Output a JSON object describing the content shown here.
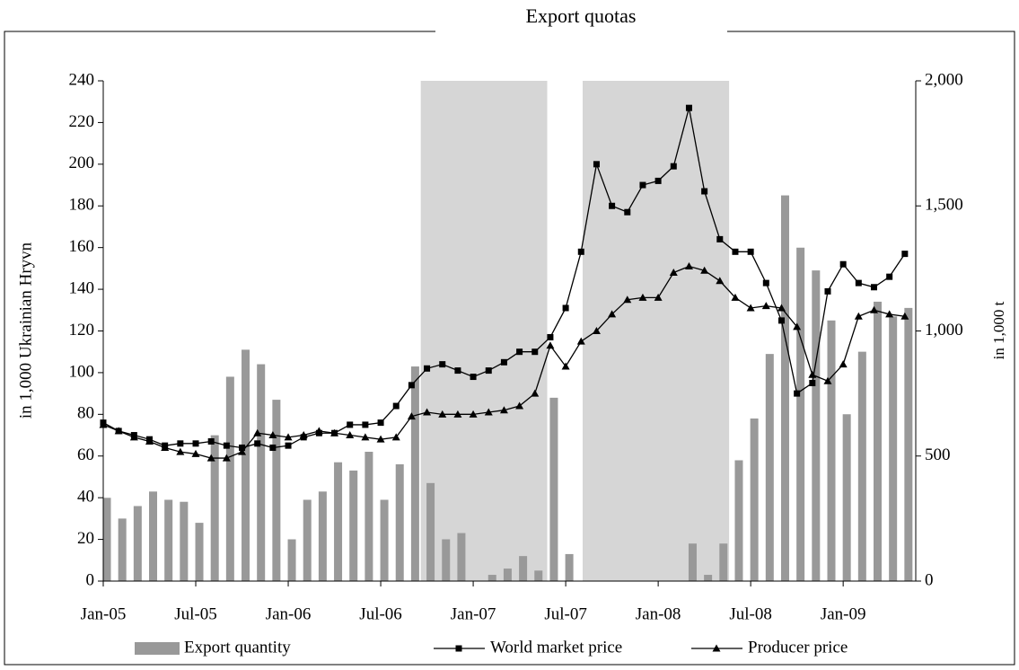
{
  "chart_data": {
    "type": "combo",
    "title": "Export quotas",
    "y_label": "in 1,000 Ukrainian Hryvn",
    "y2_label": "in 1,000 t",
    "categories": [
      "Jan-05",
      null,
      null,
      null,
      null,
      null,
      "Jul-05",
      null,
      null,
      null,
      null,
      null,
      "Jan-06",
      null,
      null,
      null,
      null,
      null,
      "Jul-06",
      null,
      null,
      null,
      null,
      null,
      "Jan-07",
      null,
      null,
      null,
      null,
      null,
      "Jul-07",
      null,
      null,
      null,
      null,
      null,
      "Jan-08",
      null,
      null,
      null,
      null,
      null,
      "Jul-08",
      null,
      null,
      null,
      null,
      null,
      "Jan-09",
      null,
      null,
      null,
      null
    ],
    "shaded_ranges": [
      [
        20.6,
        28.8
      ],
      [
        31.1,
        40.6
      ]
    ],
    "shade_color": "#d6d6d6",
    "ylim": [
      0,
      240
    ],
    "yticks": [
      0,
      20,
      40,
      60,
      80,
      100,
      120,
      140,
      160,
      180,
      200,
      220,
      240
    ],
    "y2lim": [
      0,
      2000
    ],
    "y2ticks": [
      0,
      500,
      {
        "value": 1000,
        "label": "1,000"
      },
      {
        "value": 1500,
        "label": "1,500"
      },
      {
        "value": 2000,
        "label": "2,000"
      }
    ],
    "series": [
      {
        "name": "Export quantity",
        "type": "bar",
        "axis": "y2",
        "color": "#999999",
        "values": [
          333,
          250,
          300,
          358,
          325,
          317,
          233,
          583,
          817,
          925,
          867,
          725,
          167,
          325,
          358,
          475,
          442,
          517,
          325,
          467,
          858,
          392,
          167,
          192,
          0,
          25,
          50,
          100,
          42,
          733,
          108,
          0,
          0,
          0,
          0,
          0,
          0,
          0,
          150,
          25,
          150,
          483,
          650,
          908,
          1542,
          1333,
          1242,
          1042,
          667,
          917,
          1117,
          1058,
          1092
        ]
      },
      {
        "name": "World market price",
        "type": "line",
        "marker": "square",
        "color": "#000000",
        "values": [
          76,
          72,
          70,
          68,
          65,
          66,
          66,
          67,
          65,
          64,
          66,
          64,
          65,
          69,
          71,
          71,
          75,
          75,
          76,
          84,
          94,
          102,
          104,
          101,
          98,
          101,
          105,
          110,
          110,
          117,
          131,
          158,
          200,
          180,
          177,
          190,
          192,
          199,
          227,
          187,
          164,
          158,
          158,
          143,
          125,
          90,
          95,
          139,
          152,
          143,
          141,
          146,
          157
        ]
      },
      {
        "name": "Producer price",
        "type": "line",
        "marker": "triangle",
        "color": "#000000",
        "values": [
          75,
          72,
          69,
          67,
          64,
          62,
          61,
          59,
          59,
          62,
          71,
          70,
          69,
          70,
          72,
          71,
          70,
          69,
          68,
          69,
          79,
          81,
          80,
          80,
          80,
          81,
          82,
          84,
          90,
          113,
          103,
          115,
          120,
          128,
          135,
          136,
          136,
          148,
          151,
          149,
          144,
          136,
          131,
          132,
          131,
          122,
          99,
          96,
          104,
          127,
          130,
          128,
          127
        ]
      }
    ]
  }
}
